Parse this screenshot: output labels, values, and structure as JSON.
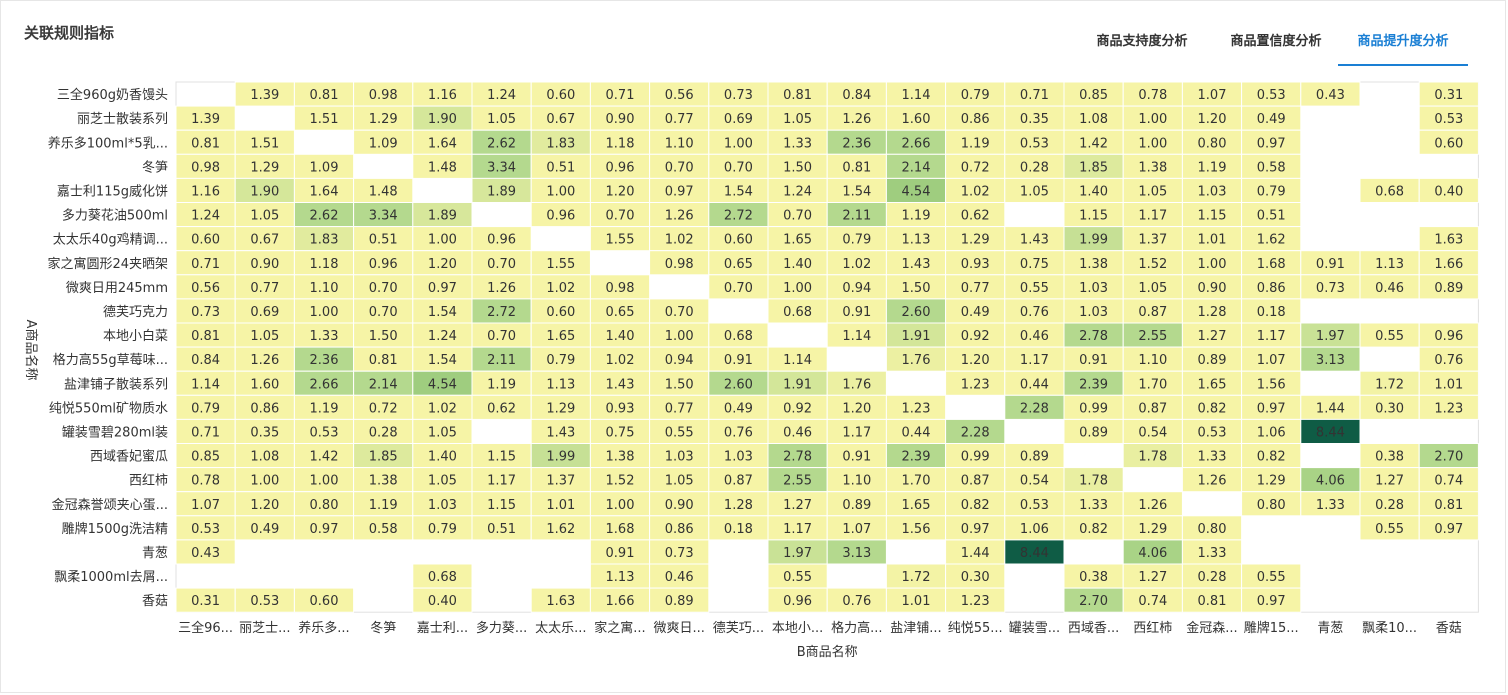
{
  "header": {
    "title": "关联规则指标"
  },
  "tabs": [
    {
      "label": "商品支持度分析",
      "active": false
    },
    {
      "label": "商品置信度分析",
      "active": false
    },
    {
      "label": "商品提升度分析",
      "active": true
    }
  ],
  "colors": {
    "accent": "#1a7fd4",
    "low": "#f6f4a6",
    "mid": "#b4d98e",
    "high": "#0f5c45"
  },
  "chart_data": {
    "type": "heatmap",
    "xlabel": "B商品名称",
    "ylabel": "A商品名称",
    "y_categories": [
      "三全960g奶香馒头",
      "丽芝士散装系列",
      "养乐多100ml*5乳...",
      "冬笋",
      "嘉士利115g威化饼",
      "多力葵花油500ml",
      "太太乐40g鸡精调...",
      "家之寓圆形24夹晒架",
      "微爽日用245mm",
      "德芙巧克力",
      "本地小白菜",
      "格力高55g草莓味...",
      "盐津铺子散装系列",
      "纯悦550ml矿物质水",
      "罐装雪碧280ml装",
      "西域香妃蜜瓜",
      "西红柿",
      "金冠森誉颂夹心蛋...",
      "雕牌1500g洗洁精",
      "青葱",
      "飘柔1000ml去屑...",
      "香菇"
    ],
    "x_categories": [
      "三全96...",
      "丽芝士...",
      "养乐多...",
      "冬笋",
      "嘉士利...",
      "多力葵...",
      "太太乐...",
      "家之寓...",
      "微爽日...",
      "德芙巧...",
      "本地小...",
      "格力高...",
      "盐津铺...",
      "纯悦55...",
      "罐装雪...",
      "西域香...",
      "西红柿",
      "金冠森...",
      "雕牌15...",
      "青葱",
      "飘柔10...",
      "香菇"
    ],
    "values": [
      [
        null,
        1.39,
        0.81,
        0.98,
        1.16,
        1.24,
        0.6,
        0.71,
        0.56,
        0.73,
        0.81,
        0.84,
        1.14,
        0.79,
        0.71,
        0.85,
        0.78,
        1.07,
        0.53,
        0.43,
        null,
        0.31
      ],
      [
        1.39,
        null,
        1.51,
        1.29,
        1.9,
        1.05,
        0.67,
        0.9,
        0.77,
        0.69,
        1.05,
        1.26,
        1.6,
        0.86,
        0.35,
        1.08,
        1.0,
        1.2,
        0.49,
        null,
        null,
        0.53
      ],
      [
        0.81,
        1.51,
        null,
        1.09,
        1.64,
        2.62,
        1.83,
        1.18,
        1.1,
        1.0,
        1.33,
        2.36,
        2.66,
        1.19,
        0.53,
        1.42,
        1.0,
        0.8,
        0.97,
        null,
        null,
        0.6
      ],
      [
        0.98,
        1.29,
        1.09,
        null,
        1.48,
        3.34,
        0.51,
        0.96,
        0.7,
        0.7,
        1.5,
        0.81,
        2.14,
        0.72,
        0.28,
        1.85,
        1.38,
        1.19,
        0.58,
        null,
        null,
        null
      ],
      [
        1.16,
        1.9,
        1.64,
        1.48,
        null,
        1.89,
        1.0,
        1.2,
        0.97,
        1.54,
        1.24,
        1.54,
        4.54,
        1.02,
        1.05,
        1.4,
        1.05,
        1.03,
        0.79,
        null,
        0.68,
        0.4
      ],
      [
        1.24,
        1.05,
        2.62,
        3.34,
        1.89,
        null,
        0.96,
        0.7,
        1.26,
        2.72,
        0.7,
        2.11,
        1.19,
        0.62,
        null,
        1.15,
        1.17,
        1.15,
        0.51,
        null,
        null,
        null
      ],
      [
        0.6,
        0.67,
        1.83,
        0.51,
        1.0,
        0.96,
        null,
        1.55,
        1.02,
        0.6,
        1.65,
        0.79,
        1.13,
        1.29,
        1.43,
        1.99,
        1.37,
        1.01,
        1.62,
        null,
        null,
        1.63
      ],
      [
        0.71,
        0.9,
        1.18,
        0.96,
        1.2,
        0.7,
        1.55,
        null,
        0.98,
        0.65,
        1.4,
        1.02,
        1.43,
        0.93,
        0.75,
        1.38,
        1.52,
        1.0,
        1.68,
        0.91,
        1.13,
        1.66
      ],
      [
        0.56,
        0.77,
        1.1,
        0.7,
        0.97,
        1.26,
        1.02,
        0.98,
        null,
        0.7,
        1.0,
        0.94,
        1.5,
        0.77,
        0.55,
        1.03,
        1.05,
        0.9,
        0.86,
        0.73,
        0.46,
        0.89
      ],
      [
        0.73,
        0.69,
        1.0,
        0.7,
        1.54,
        2.72,
        0.6,
        0.65,
        0.7,
        null,
        0.68,
        0.91,
        2.6,
        0.49,
        0.76,
        1.03,
        0.87,
        1.28,
        0.18,
        null,
        null,
        null
      ],
      [
        0.81,
        1.05,
        1.33,
        1.5,
        1.24,
        0.7,
        1.65,
        1.4,
        1.0,
        0.68,
        null,
        1.14,
        1.91,
        0.92,
        0.46,
        2.78,
        2.55,
        1.27,
        1.17,
        1.97,
        0.55,
        0.96
      ],
      [
        0.84,
        1.26,
        2.36,
        0.81,
        1.54,
        2.11,
        0.79,
        1.02,
        0.94,
        0.91,
        1.14,
        null,
        1.76,
        1.2,
        1.17,
        0.91,
        1.1,
        0.89,
        1.07,
        3.13,
        null,
        0.76
      ],
      [
        1.14,
        1.6,
        2.66,
        2.14,
        4.54,
        1.19,
        1.13,
        1.43,
        1.5,
        2.6,
        1.91,
        1.76,
        null,
        1.23,
        0.44,
        2.39,
        1.7,
        1.65,
        1.56,
        null,
        1.72,
        1.01
      ],
      [
        0.79,
        0.86,
        1.19,
        0.72,
        1.02,
        0.62,
        1.29,
        0.93,
        0.77,
        0.49,
        0.92,
        1.2,
        1.23,
        null,
        2.28,
        0.99,
        0.87,
        0.82,
        0.97,
        1.44,
        0.3,
        1.23
      ],
      [
        0.71,
        0.35,
        0.53,
        0.28,
        1.05,
        null,
        1.43,
        0.75,
        0.55,
        0.76,
        0.46,
        1.17,
        0.44,
        2.28,
        null,
        0.89,
        0.54,
        0.53,
        1.06,
        8.44,
        null,
        null
      ],
      [
        0.85,
        1.08,
        1.42,
        1.85,
        1.4,
        1.15,
        1.99,
        1.38,
        1.03,
        1.03,
        2.78,
        0.91,
        2.39,
        0.99,
        0.89,
        null,
        1.78,
        1.33,
        0.82,
        null,
        0.38,
        2.7
      ],
      [
        0.78,
        1.0,
        1.0,
        1.38,
        1.05,
        1.17,
        1.37,
        1.52,
        1.05,
        0.87,
        2.55,
        1.1,
        1.7,
        0.87,
        0.54,
        1.78,
        null,
        1.26,
        1.29,
        4.06,
        1.27,
        0.74
      ],
      [
        1.07,
        1.2,
        0.8,
        1.19,
        1.03,
        1.15,
        1.01,
        1.0,
        0.9,
        1.28,
        1.27,
        0.89,
        1.65,
        0.82,
        0.53,
        1.33,
        1.26,
        null,
        0.8,
        1.33,
        0.28,
        0.81
      ],
      [
        0.53,
        0.49,
        0.97,
        0.58,
        0.79,
        0.51,
        1.62,
        1.68,
        0.86,
        0.18,
        1.17,
        1.07,
        1.56,
        0.97,
        1.06,
        0.82,
        1.29,
        0.8,
        null,
        null,
        0.55,
        0.97
      ],
      [
        0.43,
        null,
        null,
        null,
        null,
        null,
        null,
        0.91,
        0.73,
        null,
        1.97,
        3.13,
        null,
        1.44,
        8.44,
        null,
        4.06,
        1.33,
        null,
        null,
        null,
        null
      ],
      [
        null,
        null,
        null,
        null,
        0.68,
        null,
        null,
        1.13,
        0.46,
        null,
        0.55,
        null,
        1.72,
        0.3,
        null,
        0.38,
        1.27,
        0.28,
        0.55,
        null,
        null,
        null
      ],
      [
        0.31,
        0.53,
        0.6,
        null,
        0.4,
        null,
        1.63,
        1.66,
        0.89,
        null,
        0.96,
        0.76,
        1.01,
        1.23,
        null,
        2.7,
        0.74,
        0.81,
        0.97,
        null,
        null,
        null
      ]
    ]
  }
}
